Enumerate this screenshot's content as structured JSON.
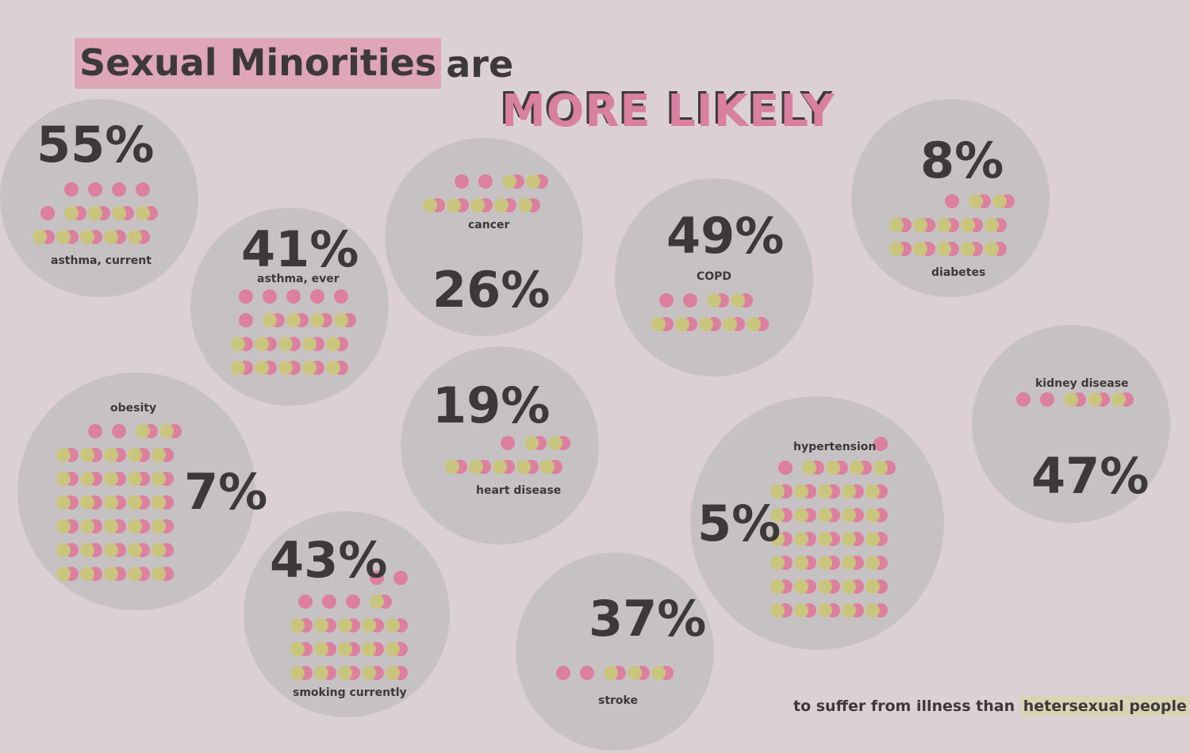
{
  "title": {
    "highlight": "Sexual Minorities",
    "rest": "are",
    "emphasis": "MORE LIKELY"
  },
  "footer": {
    "text": "to suffer from illness than",
    "highlight": "hetersexual people"
  },
  "colors": {
    "background": "#dbd1d5",
    "circle": "#c6c2c4",
    "pink": "#dd7f9f",
    "olive": "#c9c57d",
    "text": "#3d393b"
  },
  "stats": [
    {
      "id": "asthma-current",
      "label": "asthma, current",
      "percent": "55%"
    },
    {
      "id": "asthma-ever",
      "label": "asthma, ever",
      "percent": "41%"
    },
    {
      "id": "cancer",
      "label": "cancer",
      "percent": "26%"
    },
    {
      "id": "copd",
      "label": "COPD",
      "percent": "49%"
    },
    {
      "id": "diabetes",
      "label": "diabetes",
      "percent": "8%"
    },
    {
      "id": "obesity",
      "label": "obesity",
      "percent": "7%"
    },
    {
      "id": "heart-disease",
      "label": "heart disease",
      "percent": "19%"
    },
    {
      "id": "smoking",
      "label": "smoking currently",
      "percent": "43%"
    },
    {
      "id": "stroke",
      "label": "stroke",
      "percent": "37%"
    },
    {
      "id": "hypertension",
      "label": "hypertension",
      "percent": "5%"
    },
    {
      "id": "kidney-disease",
      "label": "kidney disease",
      "percent": "47%"
    }
  ]
}
